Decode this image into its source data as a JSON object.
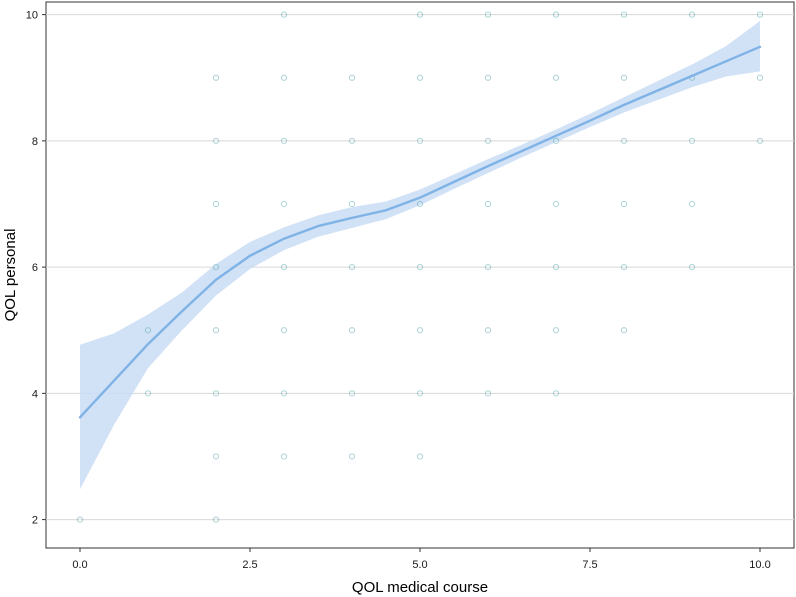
{
  "chart_data": {
    "type": "scatter",
    "title": "",
    "xlabel": "QOL medical course",
    "ylabel": "QOL personal",
    "xlim": [
      -0.5,
      10.5
    ],
    "ylim": [
      1.55,
      10.2
    ],
    "x_ticks": [
      0.0,
      2.5,
      5.0,
      7.5,
      10.0
    ],
    "x_tick_labels": [
      "0.0",
      "2.5",
      "5.0",
      "7.5",
      "10.0"
    ],
    "y_ticks": [
      2,
      4,
      6,
      8,
      10
    ],
    "y_tick_labels": [
      "2",
      "4",
      "6",
      "8",
      "10"
    ],
    "grid": "horizontal",
    "colors": {
      "points": "#5aaab0",
      "smooth_line": "#7fb3e6",
      "ribbon": "#c9dcf4"
    },
    "points": [
      [
        0,
        2
      ],
      [
        1,
        4
      ],
      [
        1,
        5
      ],
      [
        2,
        2
      ],
      [
        2,
        3
      ],
      [
        2,
        4
      ],
      [
        2,
        5
      ],
      [
        2,
        6
      ],
      [
        2,
        7
      ],
      [
        2,
        8
      ],
      [
        2,
        9
      ],
      [
        3,
        3
      ],
      [
        3,
        4
      ],
      [
        3,
        5
      ],
      [
        3,
        6
      ],
      [
        3,
        7
      ],
      [
        3,
        8
      ],
      [
        3,
        9
      ],
      [
        3,
        10
      ],
      [
        4,
        3
      ],
      [
        4,
        4
      ],
      [
        4,
        5
      ],
      [
        4,
        6
      ],
      [
        4,
        7
      ],
      [
        4,
        8
      ],
      [
        4,
        9
      ],
      [
        5,
        3
      ],
      [
        5,
        4
      ],
      [
        5,
        5
      ],
      [
        5,
        6
      ],
      [
        5,
        7
      ],
      [
        5,
        8
      ],
      [
        5,
        9
      ],
      [
        5,
        10
      ],
      [
        6,
        4
      ],
      [
        6,
        5
      ],
      [
        6,
        6
      ],
      [
        6,
        7
      ],
      [
        6,
        8
      ],
      [
        6,
        9
      ],
      [
        6,
        10
      ],
      [
        7,
        4
      ],
      [
        7,
        5
      ],
      [
        7,
        6
      ],
      [
        7,
        7
      ],
      [
        7,
        8
      ],
      [
        7,
        9
      ],
      [
        7,
        10
      ],
      [
        8,
        5
      ],
      [
        8,
        6
      ],
      [
        8,
        7
      ],
      [
        8,
        8
      ],
      [
        8,
        9
      ],
      [
        8,
        10
      ],
      [
        9,
        6
      ],
      [
        9,
        7
      ],
      [
        9,
        8
      ],
      [
        9,
        9
      ],
      [
        9,
        10
      ],
      [
        10,
        8
      ],
      [
        10,
        9
      ],
      [
        10,
        10
      ]
    ],
    "smooth": {
      "x": [
        0.0,
        0.5,
        1.0,
        1.5,
        2.0,
        2.5,
        3.0,
        3.5,
        4.0,
        4.5,
        5.0,
        5.5,
        6.0,
        6.5,
        7.0,
        7.5,
        8.0,
        8.5,
        9.0,
        9.5,
        10.0
      ],
      "y": [
        3.62,
        4.2,
        4.78,
        5.3,
        5.8,
        6.18,
        6.45,
        6.65,
        6.78,
        6.9,
        7.1,
        7.35,
        7.6,
        7.84,
        8.08,
        8.32,
        8.57,
        8.8,
        9.03,
        9.26,
        9.49
      ],
      "lower": [
        2.48,
        3.5,
        4.4,
        5.0,
        5.55,
        5.97,
        6.27,
        6.48,
        6.62,
        6.76,
        6.98,
        7.24,
        7.49,
        7.74,
        7.98,
        8.22,
        8.45,
        8.65,
        8.85,
        9.02,
        9.1
      ],
      "upper": [
        4.77,
        4.95,
        5.25,
        5.6,
        6.05,
        6.4,
        6.63,
        6.82,
        6.95,
        7.04,
        7.23,
        7.47,
        7.71,
        7.94,
        8.18,
        8.43,
        8.69,
        8.95,
        9.21,
        9.5,
        9.9
      ]
    }
  }
}
